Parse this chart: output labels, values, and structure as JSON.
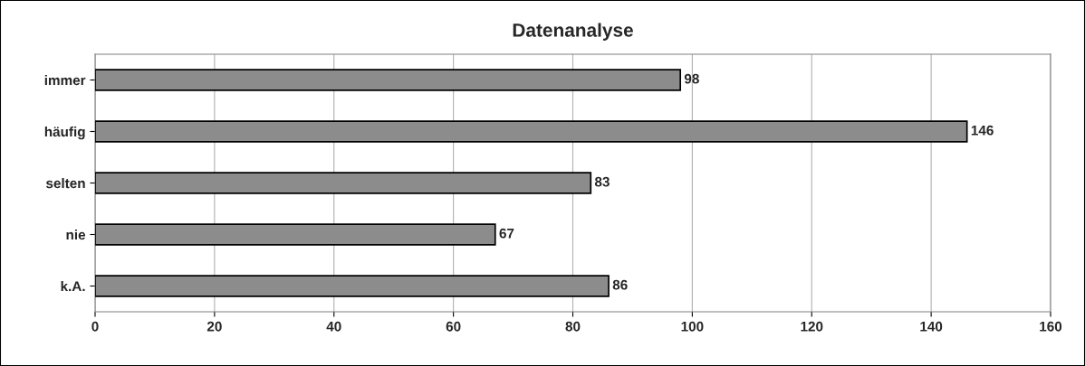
{
  "chart_data": {
    "type": "bar",
    "orientation": "horizontal",
    "title": "Datenanalyse",
    "categories": [
      "immer",
      "häufig",
      "selten",
      "nie",
      "k.A."
    ],
    "values": [
      98,
      146,
      83,
      67,
      86
    ],
    "color": "#8c8c8c",
    "xlim": [
      0,
      160
    ],
    "xticks": [
      0,
      20,
      40,
      60,
      80,
      100,
      120,
      140,
      160
    ],
    "grid": "x",
    "data_labels": true
  }
}
